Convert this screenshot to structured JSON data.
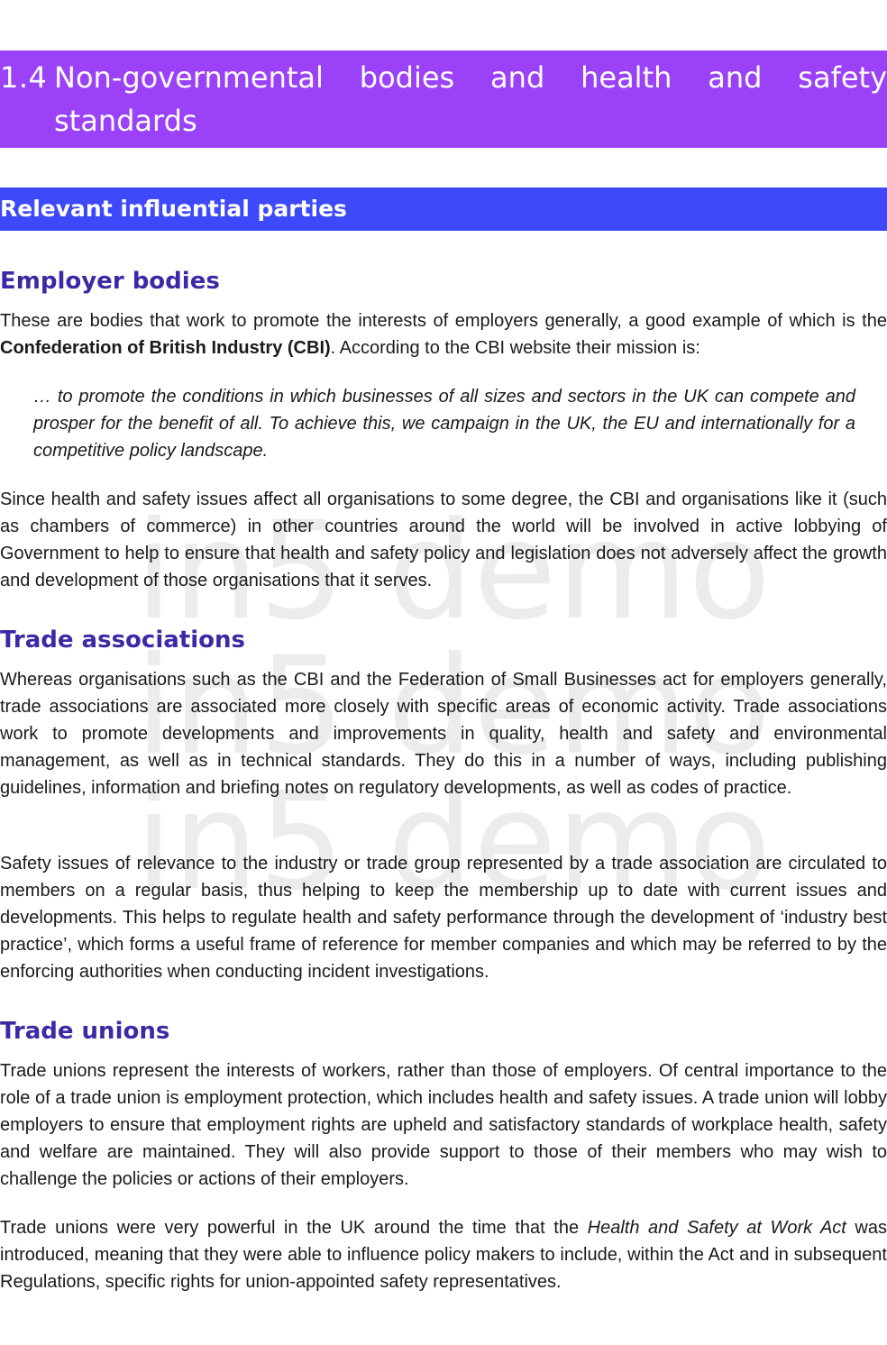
{
  "section": {
    "number": "1.4",
    "title": "Non-governmental bodies and health and safety standards"
  },
  "subsection_title": "Relevant influential parties",
  "watermark_text": "in5 demo",
  "employer_bodies": {
    "heading": "Employer bodies",
    "intro_before": "These are bodies that work to promote the interests of employers generally, a good example of which is the ",
    "intro_bold": "Confederation of British Industry (CBI)",
    "intro_after": ". According to the CBI website their mission is:",
    "quote": "… to promote the conditions in which businesses of all sizes and sectors in the UK can compete and prosper for the benefit of all. To achieve this, we campaign in the UK, the EU and internationally for a competitive policy landscape.",
    "para2": "Since health and safety issues affect all organisations to some degree, the CBI and organisations like it (such as chambers of commerce) in other countries around the world will be involved in active lobbying of Government to help to ensure that health and safety policy and legislation does not adversely affect the growth and development of those organisations that it serves."
  },
  "trade_associations": {
    "heading": "Trade associations",
    "para1": "Whereas organisations such as the CBI and the Federation of Small Businesses act for employers generally, trade associations are associated more closely with specific areas of economic activity. Trade associations work to promote developments and improvements in quality, health and safety and environmental management, as well as in technical standards. They do this in a number of ways, including publishing guidelines, information and briefing notes on regulatory developments, as well as codes of practice.",
    "para2": "Safety issues of relevance to the industry or trade group represented by a trade association are circulated to members on a regular basis, thus helping to keep the membership up to date with current issues and developments. This helps to regulate health and safety performance through the development of ‘industry best practice’, which forms a useful frame of reference for member companies and which may be referred to by the enforcing authorities when conducting incident investigations."
  },
  "trade_unions": {
    "heading": "Trade unions",
    "para1": "Trade unions represent the interests of workers, rather than those of employers. Of central importance to the role of a trade union is employment protection, which includes health and safety issues. A trade union will lobby employers to ensure that employment rights are upheld and satisfactory standards of workplace health, safety and welfare are maintained. They will also provide support to those of their members who may wish to challenge the policies or actions of their employers.",
    "para2_before": "Trade unions were very powerful in the UK around the time that the ",
    "para2_italic": "Health and Safety at Work Act",
    "para2_after": " was introduced, meaning that they were able to influence policy makers to include, within the Act and in subsequent Regulations, specific rights for union-appointed safety representatives."
  }
}
